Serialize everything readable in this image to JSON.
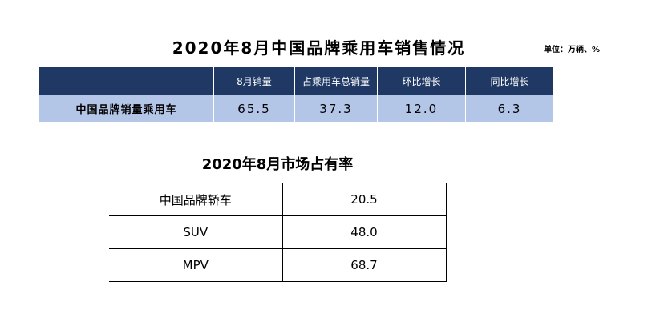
{
  "title": "2020年8月中国品牌乘用车销售情况",
  "unit": "单位：万辆、%",
  "sales_table": {
    "headers": [
      "",
      "8月销量",
      "占乘用车总销量",
      "环比增长",
      "同比增长"
    ],
    "row": {
      "label": "中国品牌销量乘用车",
      "values": [
        "65.5",
        "37.3",
        "12.0",
        "6.3"
      ]
    }
  },
  "share_title": "2020年8月市场占有率",
  "share_table": {
    "rows": [
      {
        "label": "中国品牌轿车",
        "value": "20.5"
      },
      {
        "label": "SUV",
        "value": "48.0"
      },
      {
        "label": "MPV",
        "value": "68.7"
      }
    ]
  }
}
